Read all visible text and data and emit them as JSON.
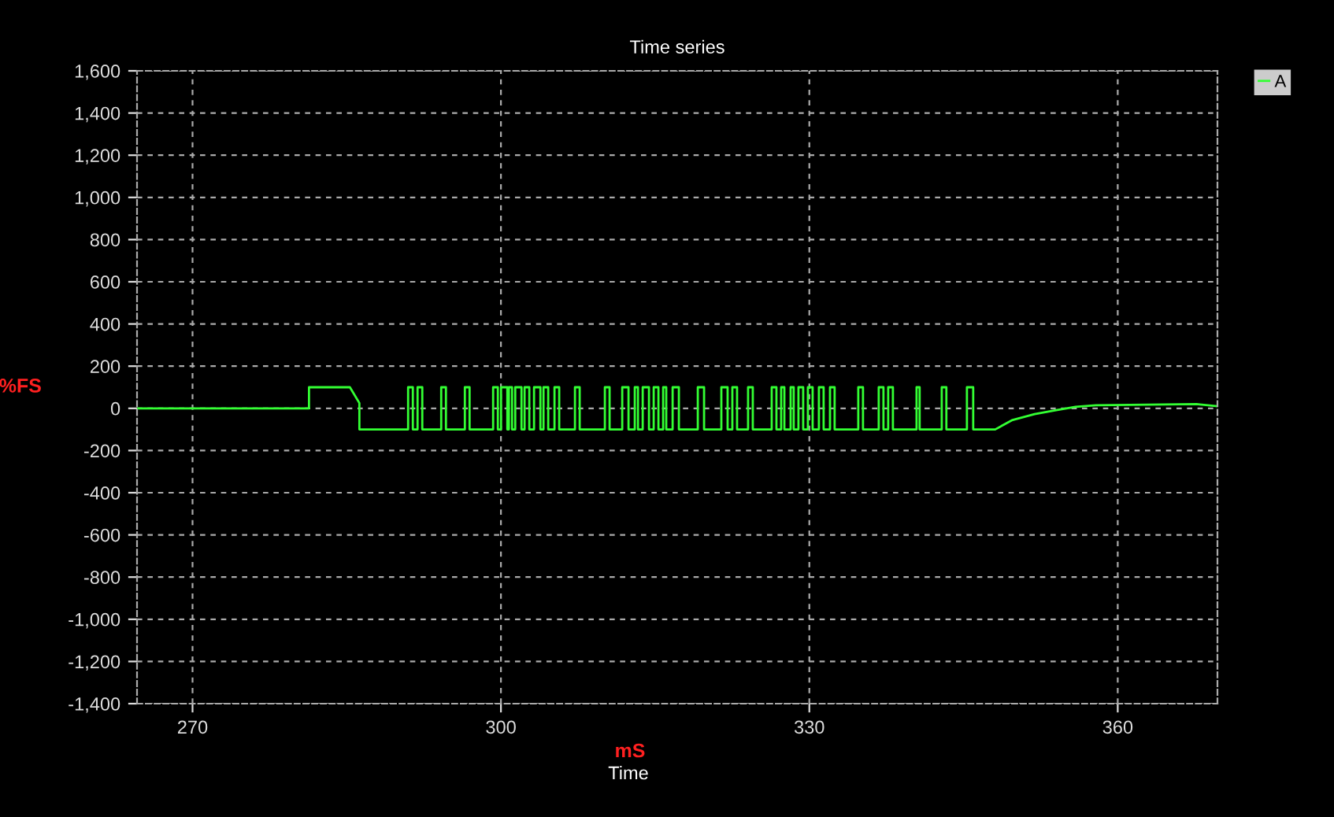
{
  "chart_data": {
    "type": "line",
    "title": "Time series",
    "xlabel": "mS",
    "ylabel": "%FS",
    "annotations": [
      "Time"
    ],
    "xlim": [
      264.6,
      369.7
    ],
    "ylim": [
      -1400,
      1600
    ],
    "xticks": [
      270,
      300,
      330,
      360
    ],
    "yticks": [
      {
        "value": -1400,
        "label": "-1,400"
      },
      {
        "value": -1200,
        "label": "-1,200"
      },
      {
        "value": -1000,
        "label": "-1,000"
      },
      -800,
      -600,
      -400,
      -200,
      0,
      200,
      400,
      600,
      800,
      {
        "value": 1000,
        "label": "1,000"
      },
      {
        "value": 1200,
        "label": "1,200"
      },
      {
        "value": 1400,
        "label": "1,400"
      },
      {
        "value": 1600,
        "label": "1,600"
      }
    ],
    "grid": true,
    "legend": "top right",
    "line_style": "solid",
    "series": [
      {
        "name": "A",
        "color": "#33ff33",
        "x": [
          264.6,
          281.33,
          281.33,
          285.31,
          286.23,
          286.23,
          290.97,
          290.97,
          291.43,
          291.43,
          291.89,
          291.89,
          292.35,
          292.35,
          294.19,
          294.19,
          294.65,
          294.65,
          296.49,
          296.49,
          296.95,
          296.95,
          299.24,
          299.24,
          299.7,
          299.7,
          300.01,
          300.01,
          300.62,
          300.62,
          300.77,
          300.77,
          301.08,
          301.08,
          301.39,
          301.39,
          302.0,
          302.0,
          302.3,
          302.3,
          302.76,
          302.76,
          303.22,
          303.22,
          303.84,
          303.84,
          304.14,
          304.14,
          304.6,
          304.6,
          305.21,
          305.21,
          305.67,
          305.67,
          307.2,
          307.2,
          307.66,
          307.66,
          310.11,
          310.11,
          310.57,
          310.57,
          311.8,
          311.8,
          312.41,
          312.41,
          313.02,
          313.02,
          313.33,
          313.33,
          313.79,
          313.79,
          314.4,
          314.4,
          314.86,
          314.86,
          315.32,
          315.32,
          315.78,
          315.78,
          316.08,
          316.08,
          316.7,
          316.7,
          317.31,
          317.31,
          319.15,
          319.15,
          319.76,
          319.76,
          321.44,
          321.44,
          322.05,
          322.05,
          322.51,
          322.51,
          322.97,
          322.97,
          324.04,
          324.04,
          324.5,
          324.5,
          326.34,
          326.34,
          326.8,
          326.8,
          327.26,
          327.26,
          327.57,
          327.57,
          328.18,
          328.18,
          328.48,
          328.48,
          328.94,
          328.94,
          329.4,
          329.4,
          329.86,
          329.86,
          330.32,
          330.32,
          330.93,
          330.93,
          331.39,
          331.39,
          332.01,
          332.01,
          332.46,
          332.46,
          334.76,
          334.76,
          335.22,
          335.22,
          336.75,
          336.75,
          337.21,
          337.21,
          337.67,
          337.67,
          338.13,
          338.13,
          340.43,
          340.43,
          340.73,
          340.73,
          342.88,
          342.88,
          343.33,
          343.33,
          345.33,
          345.33,
          345.94,
          345.94,
          348.08,
          349.77,
          351.91,
          353.9,
          355.89,
          357.88,
          367.68,
          369.67
        ],
        "values": [
          0,
          0,
          100,
          100,
          25,
          -100,
          -100,
          100,
          100,
          -100,
          -100,
          100,
          100,
          -100,
          -100,
          100,
          100,
          -100,
          -100,
          100,
          100,
          -100,
          -100,
          100,
          100,
          -100,
          -100,
          100,
          100,
          -100,
          -100,
          100,
          100,
          -100,
          -100,
          100,
          100,
          -100,
          -100,
          100,
          100,
          -100,
          -100,
          100,
          100,
          -100,
          -100,
          100,
          100,
          -100,
          -100,
          100,
          100,
          -100,
          -100,
          100,
          100,
          -100,
          -100,
          100,
          100,
          -100,
          -100,
          100,
          100,
          -100,
          -100,
          100,
          100,
          -100,
          -100,
          100,
          100,
          -100,
          -100,
          100,
          100,
          -100,
          -100,
          100,
          100,
          -100,
          -100,
          100,
          100,
          -100,
          -100,
          100,
          100,
          -100,
          -100,
          100,
          100,
          -100,
          -100,
          100,
          100,
          -100,
          -100,
          100,
          100,
          -100,
          -100,
          100,
          100,
          -100,
          -100,
          100,
          100,
          -100,
          -100,
          100,
          100,
          -100,
          -100,
          100,
          100,
          -100,
          -100,
          100,
          100,
          -100,
          -100,
          100,
          100,
          -100,
          -100,
          100,
          100,
          -100,
          -100,
          100,
          100,
          -100,
          -100,
          100,
          100,
          -100,
          -100,
          100,
          100,
          -100,
          -100,
          100,
          100,
          -100,
          -100,
          100,
          100,
          -100,
          -100,
          100,
          100,
          -100,
          -100,
          -55,
          -27,
          -10,
          7,
          15,
          20,
          10
        ]
      }
    ]
  }
}
